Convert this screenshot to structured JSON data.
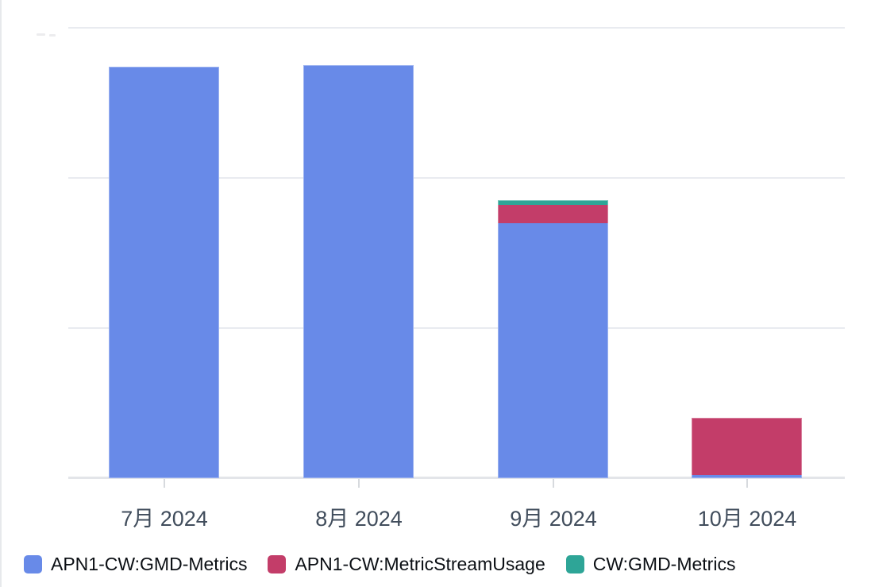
{
  "chart_data": {
    "type": "bar",
    "stacked": true,
    "title": "",
    "xlabel": "",
    "ylabel": "",
    "categories": [
      "7月 2024",
      "8月 2024",
      "9月 2024",
      "10月 2024"
    ],
    "series": [
      {
        "name": "APN1-CW:GMD-Metrics",
        "color": "#688AE8",
        "values": [
          2.74,
          2.75,
          1.7,
          0.02
        ]
      },
      {
        "name": "APN1-CW:MetricStreamUsage",
        "color": "#C33D69",
        "values": [
          0,
          0,
          0.12,
          0.38
        ]
      },
      {
        "name": "CW:GMD-Metrics",
        "color": "#2EA597",
        "values": [
          0,
          0,
          0.03,
          0
        ]
      }
    ],
    "ylim": [
      0,
      3
    ],
    "gridline_values": [
      1,
      2,
      3
    ],
    "y_axis_labels_visible": false,
    "grid": true,
    "legend_position": "bottom"
  },
  "colors": {
    "gridline": "#e9ebf0",
    "axis_line": "#e3e5e9",
    "tick": "#d7dade",
    "month_label": "#414d5c",
    "legend_text": "#0b0f14",
    "card_left_border": "#e7e9ec"
  }
}
